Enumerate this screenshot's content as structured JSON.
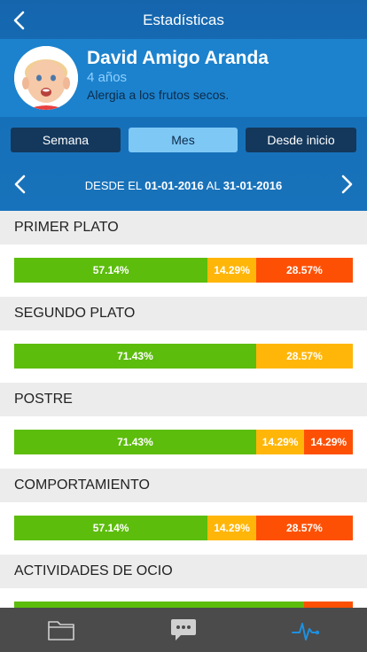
{
  "nav": {
    "title": "Estadísticas",
    "back_icon": "chevron-left-icon"
  },
  "profile": {
    "name": "David Amigo Aranda",
    "age": "4 años",
    "allergy": "Alergia a los frutos secos."
  },
  "segments": {
    "week": "Semana",
    "month": "Mes",
    "since_start": "Desde inicio",
    "selected": "Mes"
  },
  "range": {
    "from_label": "DESDE EL",
    "from_date": "01-01-2016",
    "to_label": "AL",
    "to_date": "31-01-2016"
  },
  "colors": {
    "good": "#5cbd0c",
    "medium": "#ffb609",
    "bad": "#fe5004"
  },
  "sections": [
    {
      "title": "PRIMER PLATO",
      "segments": [
        {
          "level": "good",
          "value": 57.14,
          "label": "57.14%"
        },
        {
          "level": "medium",
          "value": 14.29,
          "label": "14.29%"
        },
        {
          "level": "bad",
          "value": 28.57,
          "label": "28.57%"
        }
      ]
    },
    {
      "title": "SEGUNDO PLATO",
      "segments": [
        {
          "level": "good",
          "value": 71.43,
          "label": "71.43%"
        },
        {
          "level": "medium",
          "value": 28.57,
          "label": "28.57%"
        }
      ]
    },
    {
      "title": "POSTRE",
      "segments": [
        {
          "level": "good",
          "value": 71.43,
          "label": "71.43%"
        },
        {
          "level": "medium",
          "value": 14.29,
          "label": "14.29%"
        },
        {
          "level": "bad",
          "value": 14.29,
          "label": "14.29%"
        }
      ]
    },
    {
      "title": "COMPORTAMIENTO",
      "segments": [
        {
          "level": "good",
          "value": 57.14,
          "label": "57.14%"
        },
        {
          "level": "medium",
          "value": 14.29,
          "label": "14.29%"
        },
        {
          "level": "bad",
          "value": 28.57,
          "label": "28.57%"
        }
      ]
    },
    {
      "title": "ACTIVIDADES DE OCIO",
      "segments": [
        {
          "level": "good",
          "value": 85.71,
          "label": ""
        },
        {
          "level": "bad",
          "value": 14.29,
          "label": ""
        }
      ]
    }
  ],
  "tabbar": {
    "items": [
      {
        "icon": "folder-icon",
        "active": false
      },
      {
        "icon": "chat-bubble-icon",
        "active": false
      },
      {
        "icon": "activity-pulse-icon",
        "active": true
      }
    ],
    "active_color": "#1e90e0",
    "inactive_color": "#d0d0d0"
  }
}
